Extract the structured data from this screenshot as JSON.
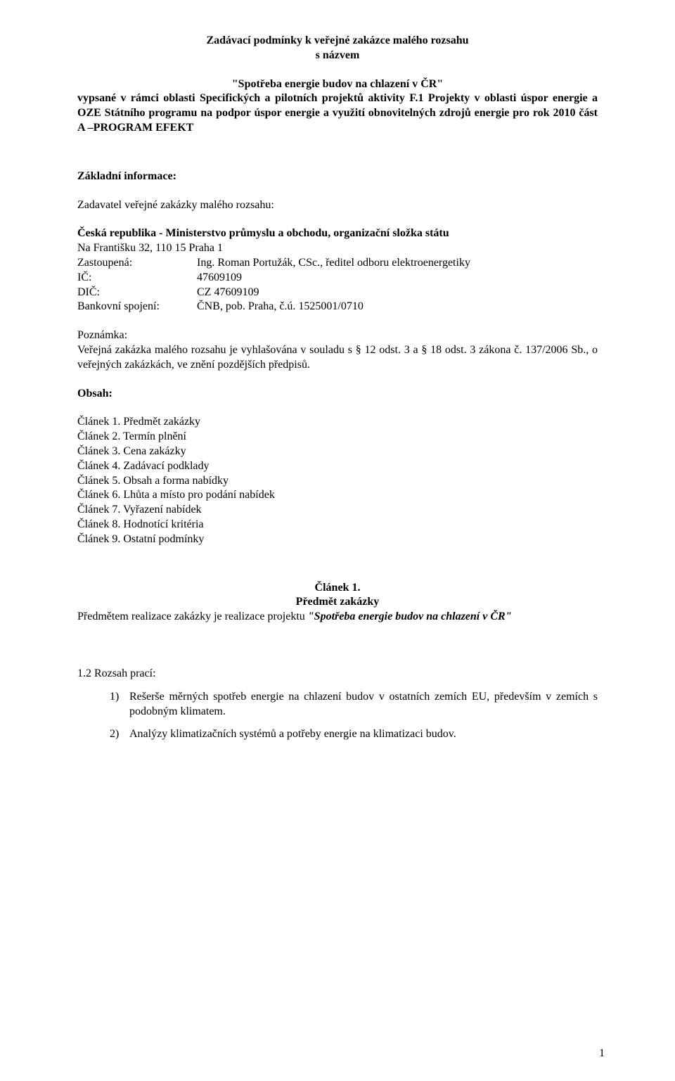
{
  "header": {
    "line1": "Zadávací podmínky k veřejné zakázce malého rozsahu",
    "line2": "s názvem",
    "project_title": "\"Spotřeba energie budov na chlazení v ČR\"",
    "context": "vypsané v rámci oblasti Specifických a pilotních projektů aktivity F.1 Projekty v oblasti úspor energie a OZE Státního programu na podpor úspor energie a využití obnovitelných zdrojů energie pro rok 2010 část A –PROGRAM EFEKT"
  },
  "basic_info": {
    "heading": "Základní informace:",
    "contracting_authority_label": "Zadavatel veřejné zakázky malého rozsahu:",
    "entity": "Česká republika - Ministerstvo průmyslu a obchodu, organizační složka státu",
    "address": "Na Františku 32, 110 15  Praha 1",
    "fields": {
      "represented": {
        "label": "Zastoupená:",
        "value": "Ing. Roman Portužák, CSc., ředitel odboru elektroenergetiky"
      },
      "ic": {
        "label": "IČ:",
        "value": "47609109"
      },
      "dic": {
        "label": "DIČ:",
        "value": "CZ 47609109"
      },
      "bank": {
        "label": "Bankovní spojení:",
        "value": "ČNB, pob. Praha, č.ú. 1525001/0710"
      }
    }
  },
  "note": {
    "label": "Poznámka:",
    "text": "Veřejná zakázka malého rozsahu je vyhlašována v souladu s § 12 odst. 3 a § 18 odst. 3 zákona č. 137/2006 Sb., o veřejných zakázkách, ve znění pozdějších předpisů."
  },
  "contents": {
    "heading": "Obsah:",
    "items": [
      "Článek 1. Předmět zakázky",
      "Článek 2. Termín plnění",
      "Článek 3. Cena zakázky",
      "Článek 4. Zadávací podklady",
      "Článek 5. Obsah a forma nabídky",
      "Článek 6. Lhůta a místo pro podání nabídek",
      "Článek 7. Vyřazení nabídek",
      "Článek 8. Hodnotící kritéria",
      "Článek 9. Ostatní podmínky"
    ]
  },
  "article1": {
    "title": "Článek 1.",
    "subtitle": "Předmět zakázky",
    "subject_prefix": "Předmětem realizace zakázky je realizace projektu ",
    "subject_name": "\"Spotřeba energie budov na chlazení v ČR\"",
    "scope_heading": "1.2 Rozsah prací:",
    "scope_items": [
      {
        "num": "1)",
        "text": "Rešerše měrných spotřeb energie na chlazení budov v ostatních zemích EU, především v zemích s podobným klimatem."
      },
      {
        "num": "2)",
        "text": "Analýzy klimatizačních systémů a potřeby energie na klimatizaci budov."
      }
    ]
  },
  "page_number": "1"
}
